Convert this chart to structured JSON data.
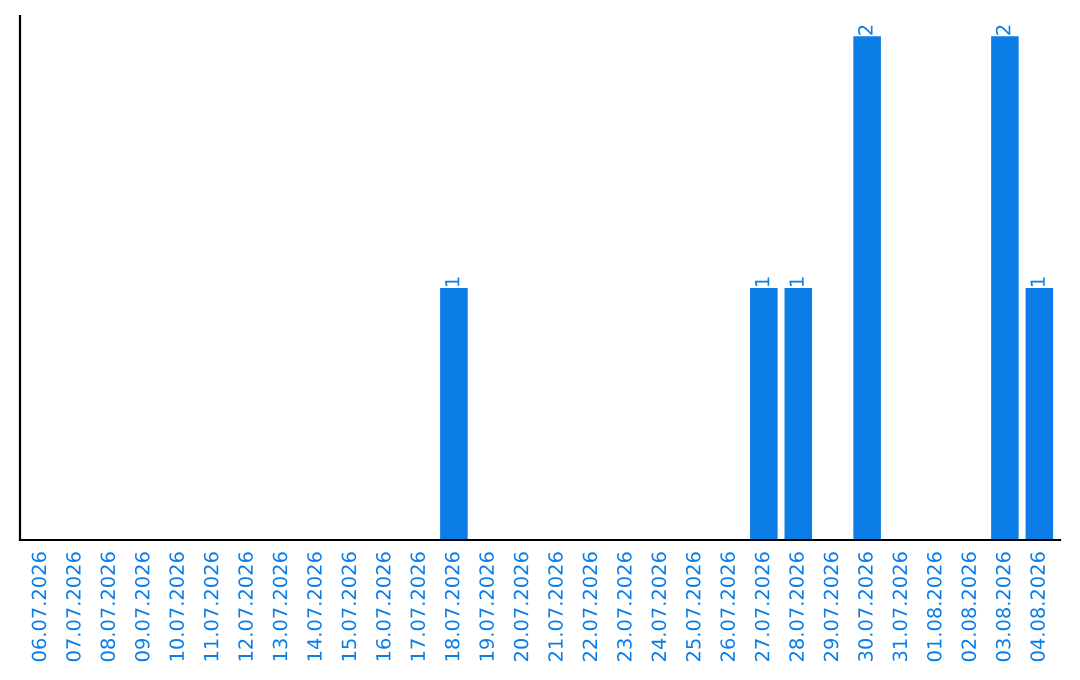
{
  "chart_data": {
    "type": "bar",
    "categories": [
      "06.07.2026",
      "07.07.2026",
      "08.07.2026",
      "09.07.2026",
      "10.07.2026",
      "11.07.2026",
      "12.07.2026",
      "13.07.2026",
      "14.07.2026",
      "15.07.2026",
      "16.07.2026",
      "17.07.2026",
      "18.07.2026",
      "19.07.2026",
      "20.07.2026",
      "21.07.2026",
      "22.07.2026",
      "23.07.2026",
      "24.07.2026",
      "25.07.2026",
      "26.07.2026",
      "27.07.2026",
      "28.07.2026",
      "29.07.2026",
      "30.07.2026",
      "31.07.2026",
      "01.08.2026",
      "02.08.2026",
      "03.08.2026",
      "04.08.2026"
    ],
    "values": [
      null,
      null,
      null,
      null,
      null,
      null,
      null,
      null,
      null,
      null,
      null,
      null,
      1,
      null,
      null,
      null,
      null,
      null,
      null,
      null,
      null,
      1,
      1,
      null,
      2,
      null,
      null,
      null,
      2,
      1
    ],
    "data_labels": true,
    "color": "#0a7de6"
  }
}
